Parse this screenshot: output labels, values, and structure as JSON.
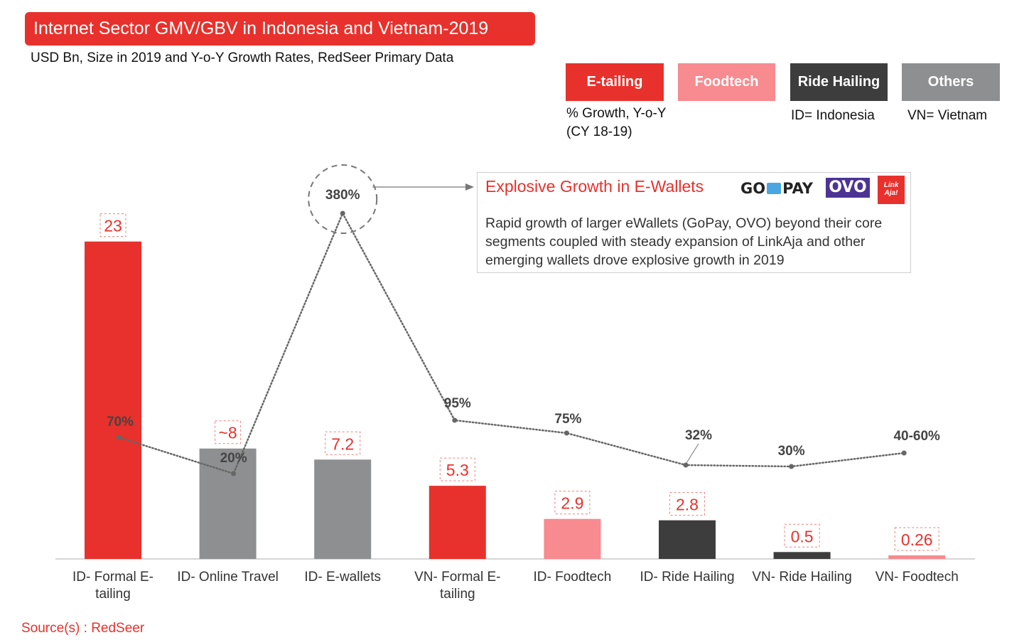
{
  "header": {
    "title": "Internet Sector GMV/GBV in Indonesia and Vietnam-2019",
    "subtitle": "USD Bn, Size in 2019 and Y-o-Y Growth Rates, RedSeer Primary Data"
  },
  "legend": {
    "items": [
      {
        "label": "E-tailing",
        "color": "#e8312c"
      },
      {
        "label": "Foodtech",
        "color": "#f78b8f"
      },
      {
        "label": "Ride Hailing",
        "color": "#3d3d3d"
      },
      {
        "label": "Others",
        "color": "#8e8f91"
      }
    ],
    "growth_note_line1": "% Growth, Y-o-Y",
    "growth_note_line2": "(CY 18-19)",
    "id_note": "ID=  Indonesia",
    "vn_note": "VN=  Vietnam"
  },
  "callout": {
    "title": "Explosive Growth in E-Wallets",
    "body": "Rapid growth of larger eWallets (GoPay, OVO) beyond their core segments coupled with steady expansion of LinkAja and other emerging wallets drove explosive growth in 2019",
    "logos": {
      "gopay_left": "GO",
      "gopay_right": "PAY",
      "ovo": "OVO",
      "linkaja_line1": "Link",
      "linkaja_line2": "Aja!"
    }
  },
  "source": "Source(s) : RedSeer",
  "chart_data": {
    "type": "bar",
    "title": "Internet Sector GMV/GBV in Indonesia and Vietnam-2019",
    "ylim": [
      0,
      27
    ],
    "grid": false,
    "categories": [
      [
        "ID- Formal E-",
        "tailing"
      ],
      [
        "ID- Online Travel"
      ],
      [
        "ID- E-wallets"
      ],
      [
        "VN- Formal E-",
        "tailing"
      ],
      [
        "ID- Foodtech"
      ],
      [
        "ID- Ride Hailing"
      ],
      [
        "VN- Ride Hailing"
      ],
      [
        "VN- Foodtech"
      ]
    ],
    "values": [
      23,
      8,
      7.2,
      5.3,
      2.9,
      2.8,
      0.5,
      0.26
    ],
    "value_labels": [
      "23",
      "~8",
      "7.2",
      "5.3",
      "2.9",
      "2.8",
      "0.5",
      "0.26"
    ],
    "segments": [
      "E-tailing",
      "Others",
      "Others",
      "E-tailing",
      "Foodtech",
      "Ride Hailing",
      "Ride Hailing",
      "Foodtech"
    ],
    "colors": {
      "E-tailing": "#e8312c",
      "Foodtech": "#f78b8f",
      "Ride Hailing": "#3d3d3d",
      "Others": "#8e8f91"
    },
    "growth_series": {
      "values": [
        70,
        20,
        380,
        95,
        75,
        32,
        30,
        50
      ],
      "labels": [
        "70%",
        "20%",
        "380%",
        "95%",
        "75%",
        "32%",
        "30%",
        "40-60%"
      ],
      "line_style": "dotted"
    }
  }
}
